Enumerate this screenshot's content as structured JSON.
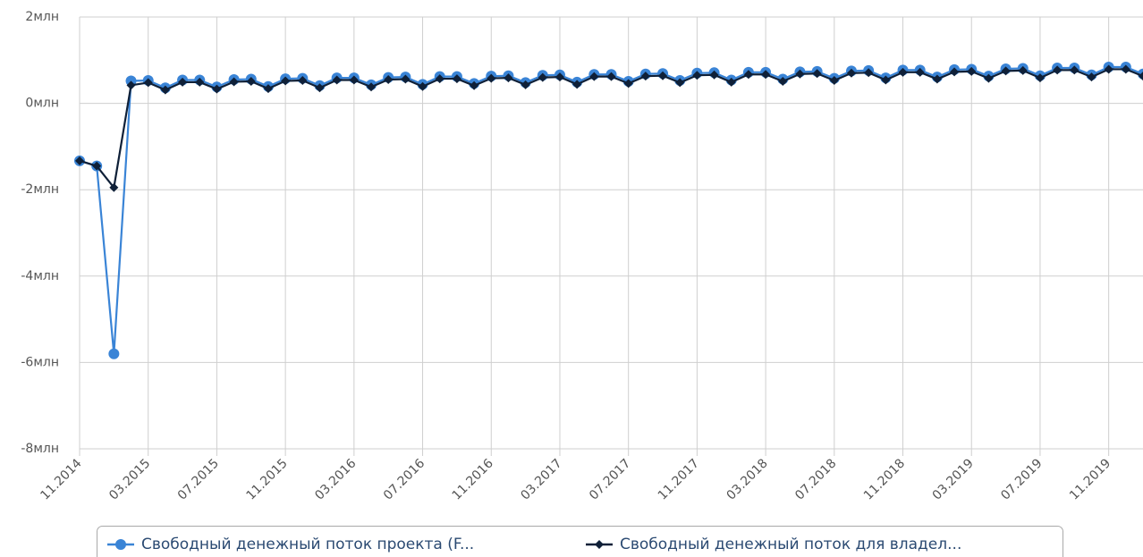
{
  "chart_data": {
    "type": "line",
    "categories": [
      "11.2014",
      null,
      null,
      null,
      "03.2015",
      null,
      null,
      null,
      "07.2015",
      null,
      null,
      null,
      "11.2015",
      null,
      null,
      null,
      "03.2016",
      null,
      null,
      null,
      "07.2016",
      null,
      null,
      null,
      "11.2016",
      null,
      null,
      null,
      "03.2017",
      null,
      null,
      null,
      "07.2017",
      null,
      null,
      null,
      "11.2017",
      null,
      null,
      null,
      "03.2018",
      null,
      null,
      null,
      "07.2018",
      null,
      null,
      null,
      "11.2018",
      null,
      null,
      null,
      "03.2019",
      null,
      null,
      null,
      "07.2019",
      null,
      null,
      null,
      "11.2019",
      null,
      null
    ],
    "series": [
      {
        "name": "Свободный денежный поток проекта (F...",
        "color": "#3a84d6",
        "marker": "circle",
        "values": [
          -1.33,
          -1.45,
          -5.8,
          0.52,
          0.53,
          0.36,
          0.54,
          0.54,
          0.38,
          0.55,
          0.56,
          0.39,
          0.57,
          0.58,
          0.41,
          0.59,
          0.59,
          0.43,
          0.6,
          0.61,
          0.44,
          0.62,
          0.62,
          0.46,
          0.63,
          0.64,
          0.48,
          0.65,
          0.66,
          0.49,
          0.67,
          0.67,
          0.51,
          0.68,
          0.69,
          0.53,
          0.7,
          0.71,
          0.54,
          0.72,
          0.72,
          0.56,
          0.73,
          0.74,
          0.58,
          0.75,
          0.76,
          0.59,
          0.77,
          0.77,
          0.61,
          0.78,
          0.79,
          0.63,
          0.8,
          0.81,
          0.64,
          0.82,
          0.82,
          0.66,
          0.84,
          0.84,
          0.68
        ]
      },
      {
        "name": "Свободный денежный поток для владел...",
        "color": "#0f2038",
        "marker": "diamond",
        "values": [
          -1.33,
          -1.45,
          -1.95,
          0.42,
          0.48,
          0.31,
          0.49,
          0.49,
          0.33,
          0.5,
          0.51,
          0.34,
          0.52,
          0.53,
          0.36,
          0.54,
          0.54,
          0.38,
          0.55,
          0.56,
          0.39,
          0.57,
          0.57,
          0.41,
          0.58,
          0.59,
          0.43,
          0.6,
          0.61,
          0.44,
          0.62,
          0.62,
          0.46,
          0.63,
          0.64,
          0.48,
          0.65,
          0.66,
          0.49,
          0.67,
          0.67,
          0.51,
          0.68,
          0.69,
          0.53,
          0.7,
          0.71,
          0.54,
          0.72,
          0.72,
          0.56,
          0.73,
          0.74,
          0.58,
          0.75,
          0.76,
          0.59,
          0.77,
          0.77,
          0.61,
          0.79,
          0.79,
          0.63
        ]
      }
    ],
    "ylim": [
      -8,
      2
    ],
    "yticks": [
      {
        "value": -8,
        "label": "-8млн"
      },
      {
        "value": -6,
        "label": "-6млн"
      },
      {
        "value": -4,
        "label": "-4млн"
      },
      {
        "value": -2,
        "label": "-2млн"
      },
      {
        "value": 0,
        "label": "0млн"
      },
      {
        "value": 2,
        "label": "2млн"
      }
    ],
    "grid": true,
    "legend": "bottom"
  }
}
